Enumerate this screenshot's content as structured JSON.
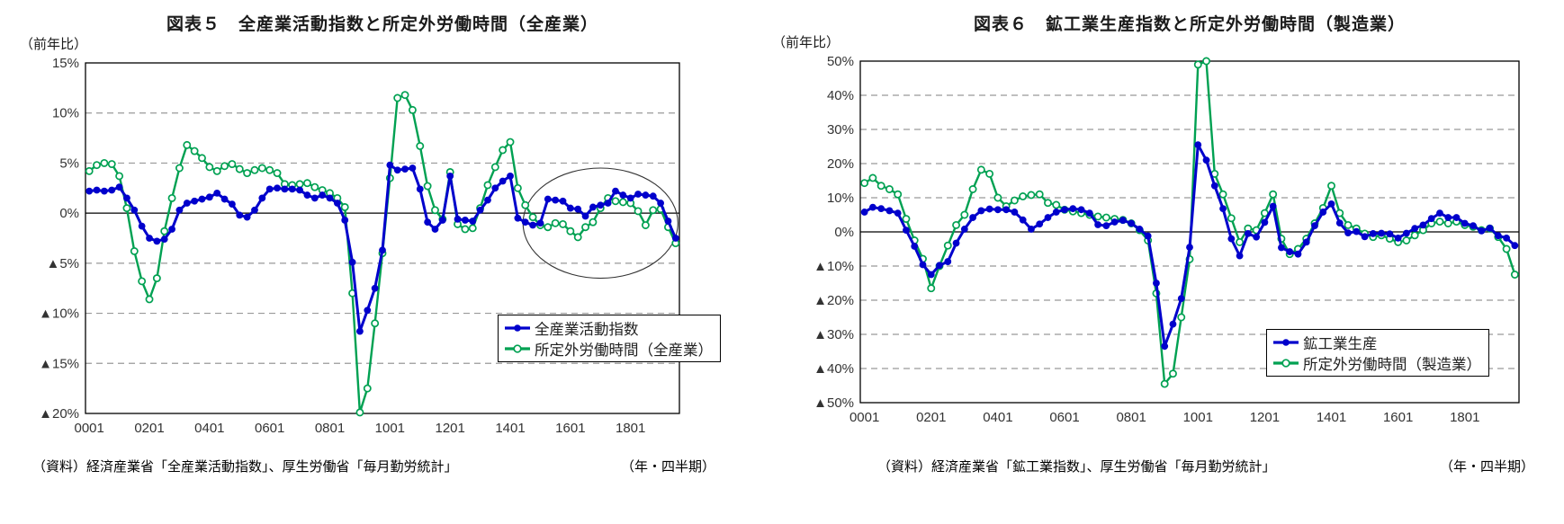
{
  "charts": [
    {
      "id": "chart5",
      "title": "図表５　全産業活動指数と所定外労働時間（全産業）",
      "unit_label": "（前年比）",
      "period_note": "（年・四半期）",
      "source": "（資料）経済産業省「全産業活動指数」、厚生労働省「毎月勤労統計」",
      "chart_data": {
        "type": "line",
        "x_start": "2000Q1",
        "x_end": "2019Q3",
        "x_tick_labels": [
          "0001",
          "0201",
          "0401",
          "0601",
          "0801",
          "1001",
          "1201",
          "1401",
          "1601",
          "1801"
        ],
        "x_tick_every": 8,
        "ylim": [
          -20,
          15
        ],
        "ytick_step": 5,
        "grid": "dashed-horizontal",
        "legend_position": "inside-bottom-right",
        "series": [
          {
            "name": "全産業活動指数",
            "color": "#0000CC",
            "marker": "filled-circle",
            "values": [
              2.2,
              2.3,
              2.2,
              2.3,
              2.6,
              1.5,
              0.3,
              -1.3,
              -2.5,
              -2.8,
              -2.6,
              -1.6,
              0.3,
              1.0,
              1.2,
              1.4,
              1.6,
              2.0,
              1.4,
              0.9,
              -0.2,
              -0.4,
              0.3,
              1.5,
              2.4,
              2.5,
              2.4,
              2.4,
              2.3,
              1.8,
              1.5,
              1.8,
              1.5,
              1.0,
              -0.7,
              -4.9,
              -11.8,
              -9.7,
              -7.5,
              -3.7,
              4.8,
              4.3,
              4.4,
              4.5,
              2.4,
              -0.9,
              -1.6,
              -0.7,
              3.7,
              -0.6,
              -0.7,
              -0.8,
              0.3,
              1.3,
              2.5,
              3.2,
              3.7,
              -0.5,
              -0.9,
              -1.2,
              -1.0,
              1.4,
              1.3,
              1.2,
              0.5,
              0.4,
              -0.3,
              0.6,
              0.8,
              1.0,
              2.2,
              1.8,
              1.5,
              1.9,
              1.8,
              1.7,
              1.0,
              -0.8,
              -2.5
            ]
          },
          {
            "name": "所定外労働時間（全産業）",
            "color": "#00A152",
            "marker": "open-circle",
            "values": [
              4.2,
              4.8,
              5.0,
              4.9,
              3.7,
              0.5,
              -3.8,
              -6.8,
              -8.6,
              -6.5,
              -1.8,
              1.5,
              4.5,
              6.8,
              6.2,
              5.5,
              4.6,
              4.2,
              4.7,
              4.9,
              4.4,
              4.0,
              4.3,
              4.5,
              4.3,
              4.0,
              2.9,
              2.8,
              2.9,
              3.0,
              2.6,
              2.3,
              2.0,
              1.5,
              0.6,
              -8.0,
              -19.9,
              -17.5,
              -11.0,
              -4.0,
              3.5,
              11.5,
              11.8,
              10.3,
              6.7,
              2.7,
              0.3,
              -0.6,
              4.1,
              -1.1,
              -1.6,
              -1.5,
              0.5,
              2.8,
              4.6,
              6.3,
              7.1,
              2.5,
              0.8,
              -0.4,
              -1.2,
              -1.4,
              -1.0,
              -1.1,
              -1.8,
              -2.4,
              -1.4,
              -0.9,
              0.5,
              1.5,
              1.2,
              1.1,
              1.0,
              0.2,
              -1.2,
              0.3,
              0.4,
              -1.4,
              -3.0
            ]
          }
        ],
        "annotation_ellipse": {
          "cx_index": 68,
          "cy_value": -1.0,
          "rx_quarters": 10.3,
          "ry_percent": 5.5
        }
      }
    },
    {
      "id": "chart6",
      "title": "図表６　鉱工業生産指数と所定外労働時間（製造業）",
      "unit_label": "（前年比）",
      "period_note": "（年・四半期）",
      "source": "（資料）経済産業省「鉱工業指数」、厚生労働省「毎月勤労統計」",
      "chart_data": {
        "type": "line",
        "x_start": "2000Q1",
        "x_end": "2019Q3",
        "x_tick_labels": [
          "0001",
          "0201",
          "0401",
          "0601",
          "0801",
          "1001",
          "1201",
          "1401",
          "1601",
          "1801"
        ],
        "x_tick_every": 8,
        "ylim": [
          -50,
          50
        ],
        "ytick_step": 10,
        "grid": "dashed-horizontal",
        "legend_position": "inside-bottom-right",
        "series": [
          {
            "name": "鉱工業生産",
            "color": "#0000CC",
            "marker": "filled-circle",
            "values": [
              5.8,
              7.2,
              6.8,
              6.2,
              5.5,
              0.5,
              -4.2,
              -9.6,
              -12.5,
              -9.8,
              -8.7,
              -3.3,
              0.8,
              4.2,
              6.2,
              6.7,
              6.5,
              6.5,
              5.8,
              3.5,
              0.8,
              2.3,
              4.2,
              5.8,
              6.5,
              6.8,
              6.5,
              5.5,
              2.1,
              1.8,
              2.9,
              3.4,
              2.5,
              0.8,
              -1.2,
              -15.0,
              -33.5,
              -27.0,
              -19.5,
              -4.5,
              25.5,
              21.0,
              13.5,
              6.8,
              -2.0,
              -7.0,
              -0.5,
              -1.5,
              2.8,
              7.5,
              -4.6,
              -5.8,
              -6.5,
              -3.0,
              1.8,
              5.8,
              8.2,
              2.6,
              -0.3,
              0.1,
              -1.4,
              -0.5,
              -0.4,
              -0.6,
              -1.8,
              -0.4,
              1.0,
              2.0,
              3.9,
              5.5,
              4.2,
              4.2,
              2.5,
              1.8,
              0.3,
              1.1,
              -1.1,
              -1.8,
              -4.0
            ]
          },
          {
            "name": "所定外労働時間（製造業）",
            "color": "#00A152",
            "marker": "open-circle",
            "values": [
              14.3,
              15.8,
              13.5,
              12.5,
              11.0,
              3.8,
              -2.5,
              -7.9,
              -16.5,
              -10.0,
              -4.0,
              2.0,
              5.0,
              12.5,
              18.2,
              17.0,
              10.0,
              7.5,
              9.2,
              10.4,
              10.8,
              11.0,
              8.5,
              7.9,
              6.5,
              6.0,
              5.5,
              5.0,
              4.5,
              4.2,
              3.8,
              3.5,
              2.5,
              0.5,
              -2.5,
              -18.0,
              -44.5,
              -41.5,
              -25.0,
              -8.0,
              49.0,
              50.0,
              17.0,
              11.0,
              4.0,
              -3.0,
              1.0,
              0.5,
              5.5,
              11.0,
              -2.0,
              -6.5,
              -5.0,
              -2.0,
              2.5,
              7.0,
              13.5,
              5.5,
              2.0,
              1.0,
              -0.5,
              -1.5,
              -1.0,
              -2.0,
              -3.0,
              -2.5,
              -1.0,
              0.5,
              2.5,
              3.0,
              2.5,
              3.0,
              2.0,
              1.5,
              0.5,
              1.0,
              -1.5,
              -5.0,
              -12.5
            ]
          }
        ],
        "annotation_ellipse": null
      }
    }
  ],
  "style": {
    "grid_color": "#999999",
    "axis_color": "#000000",
    "tick_label_color": "#333333",
    "negative_prefix": "▲"
  }
}
